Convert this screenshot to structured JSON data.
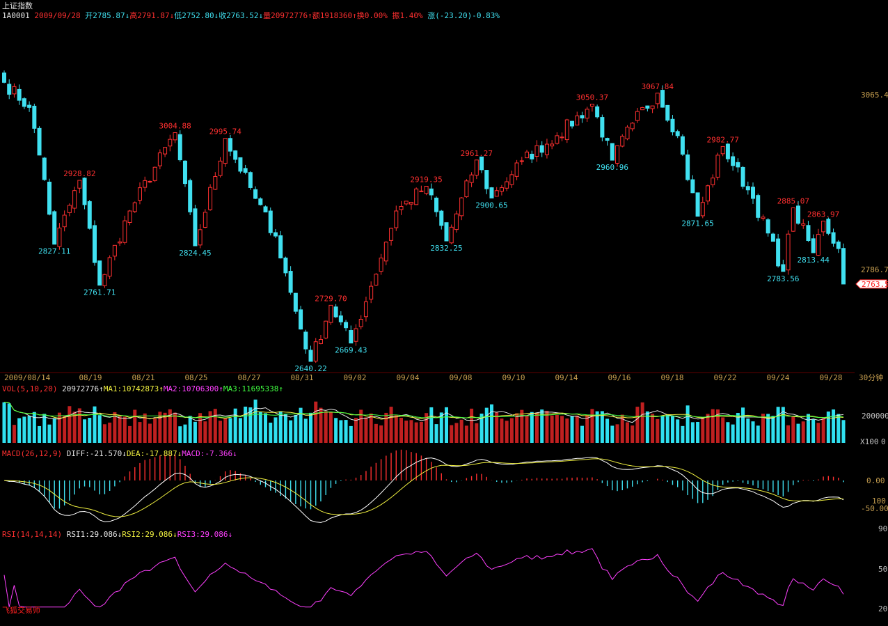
{
  "header": {
    "title": "上证指数",
    "code": "1A0001",
    "date": "2009/09/28",
    "open": "开2785.87↓",
    "high": "高2791.87↓",
    "low": "低2752.80↓",
    "close": "收2763.52↓",
    "volume": "量20972776↑",
    "amount": "额1918360↑",
    "turnover": "换0.00%",
    "amplitude": "振1.40%",
    "change": "涨(-23.20)-0.83%"
  },
  "period_label": "30分钟",
  "volume_panel": {
    "name": "VOL(5,10,20)",
    "value": "20972776↑",
    "ma1": "MA1:10742873↑",
    "ma2": "MA2:10706300↑",
    "ma3": "MA3:11695338↑",
    "unit": "X100",
    "axis_ticks": [
      "200000",
      "0"
    ]
  },
  "macd_panel": {
    "name": "MACD(26,12,9)",
    "diff": "DIFF:-21.570↓",
    "dea": "DEA:-17.887↓",
    "macd": "MACD:-7.366↓",
    "axis_ticks": [
      "0.00",
      "100",
      "-50.00"
    ]
  },
  "rsi_panel": {
    "name": "RSI(14,14,14)",
    "rsi1": "RSI1:29.086↓",
    "rsi2": "RSI2:29.086↓",
    "rsi3": "RSI3:29.086↓",
    "axis_ticks": [
      "90",
      "50",
      "20"
    ]
  },
  "watermark": "飞狐交易师",
  "colors": {
    "up": "#ff3030",
    "down": "#40e0f0",
    "ma1": "#e8e8e8",
    "ma2": "#f0f040",
    "ma3": "#40ff40",
    "rsi": "#ff40ff",
    "axis_text": "#c8a050"
  },
  "chart_data": {
    "type": "candlestick",
    "price_axis_ticks": [
      3065.4,
      2786.7
    ],
    "last_price_label": "2763.5",
    "x_tick_labels": [
      "2009/08/14",
      "08/19",
      "08/21",
      "08/25",
      "08/27",
      "08/31",
      "09/02",
      "09/04",
      "09/08",
      "09/10",
      "09/14",
      "09/16",
      "09/18",
      "09/22",
      "09/24",
      "09/28"
    ],
    "annotations": [
      {
        "value": "2928.82",
        "type": "high",
        "i": 15
      },
      {
        "value": "2827.11",
        "type": "low",
        "i": 10
      },
      {
        "value": "2761.71",
        "type": "low",
        "i": 19
      },
      {
        "value": "3004.88",
        "type": "high",
        "i": 34
      },
      {
        "value": "2824.45",
        "type": "low",
        "i": 38
      },
      {
        "value": "2995.74",
        "type": "high",
        "i": 44
      },
      {
        "value": "2640.22",
        "type": "low",
        "i": 61
      },
      {
        "value": "2729.70",
        "type": "high",
        "i": 65
      },
      {
        "value": "2669.43",
        "type": "low",
        "i": 69
      },
      {
        "value": "2919.35",
        "type": "high",
        "i": 84
      },
      {
        "value": "2832.25",
        "type": "low",
        "i": 88
      },
      {
        "value": "2961.27",
        "type": "high",
        "i": 94
      },
      {
        "value": "2900.65",
        "type": "low",
        "i": 97
      },
      {
        "value": "3050.37",
        "type": "high",
        "i": 117
      },
      {
        "value": "2960.96",
        "type": "low",
        "i": 121
      },
      {
        "value": "3067.84",
        "type": "high",
        "i": 130
      },
      {
        "value": "2871.65",
        "type": "low",
        "i": 138
      },
      {
        "value": "2982.77",
        "type": "high",
        "i": 143
      },
      {
        "value": "2783.56",
        "type": "low",
        "i": 155
      },
      {
        "value": "2885.07",
        "type": "high",
        "i": 157
      },
      {
        "value": "2813.44",
        "type": "low",
        "i": 161
      },
      {
        "value": "2863.97",
        "type": "high",
        "i": 163
      }
    ],
    "anchors": [
      [
        0,
        3085
      ],
      [
        5,
        3045
      ],
      [
        8,
        2930
      ],
      [
        10,
        2827
      ],
      [
        15,
        2928.82
      ],
      [
        19,
        2761.71
      ],
      [
        25,
        2880
      ],
      [
        34,
        3004.88
      ],
      [
        38,
        2824.45
      ],
      [
        44,
        2995.74
      ],
      [
        50,
        2900
      ],
      [
        54,
        2840
      ],
      [
        58,
        2720
      ],
      [
        61,
        2640.22
      ],
      [
        65,
        2729.7
      ],
      [
        69,
        2669.43
      ],
      [
        73,
        2760
      ],
      [
        78,
        2880
      ],
      [
        84,
        2919.35
      ],
      [
        88,
        2832.25
      ],
      [
        94,
        2961.27
      ],
      [
        97,
        2900.65
      ],
      [
        103,
        2960
      ],
      [
        110,
        3000
      ],
      [
        117,
        3050.37
      ],
      [
        121,
        2960.96
      ],
      [
        125,
        3020
      ],
      [
        130,
        3067.84
      ],
      [
        134,
        3000
      ],
      [
        138,
        2871.65
      ],
      [
        143,
        2982.77
      ],
      [
        149,
        2900
      ],
      [
        155,
        2783.56
      ],
      [
        157,
        2885.07
      ],
      [
        161,
        2813.44
      ],
      [
        163,
        2863.97
      ],
      [
        166,
        2820
      ],
      [
        167,
        2763.52
      ]
    ]
  }
}
